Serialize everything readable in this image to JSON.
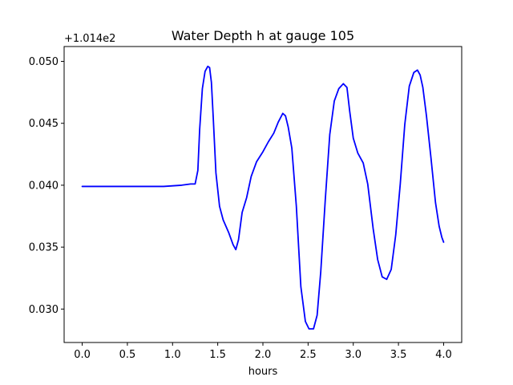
{
  "chart_data": {
    "type": "line",
    "title": "Water Depth h at gauge 105",
    "xlabel": "hours",
    "ylabel": "",
    "offset_text": "+1.014e2",
    "xlim": [
      -0.2,
      4.2
    ],
    "ylim": [
      0.0273,
      0.0512
    ],
    "xticks": [
      0.0,
      0.5,
      1.0,
      1.5,
      2.0,
      2.5,
      3.0,
      3.5,
      4.0
    ],
    "xtick_labels": [
      "0.0",
      "0.5",
      "1.0",
      "1.5",
      "2.0",
      "2.5",
      "3.0",
      "3.5",
      "4.0"
    ],
    "yticks": [
      0.03,
      0.035,
      0.04,
      0.045,
      0.05
    ],
    "ytick_labels": [
      "0.030",
      "0.035",
      "0.040",
      "0.045",
      "0.050"
    ],
    "grid": false,
    "series": [
      {
        "color": "#0000ff",
        "x": [
          0.0,
          0.3,
          0.6,
          0.9,
          1.1,
          1.2,
          1.25,
          1.28,
          1.3,
          1.33,
          1.36,
          1.39,
          1.41,
          1.43,
          1.45,
          1.48,
          1.52,
          1.56,
          1.62,
          1.67,
          1.7,
          1.73,
          1.77,
          1.82,
          1.87,
          1.93,
          2.0,
          2.06,
          2.12,
          2.17,
          2.22,
          2.25,
          2.28,
          2.32,
          2.37,
          2.42,
          2.47,
          2.51,
          2.56,
          2.6,
          2.64,
          2.69,
          2.74,
          2.79,
          2.84,
          2.89,
          2.93,
          2.96,
          3.0,
          3.05,
          3.11,
          3.16,
          3.22,
          3.27,
          3.32,
          3.37,
          3.42,
          3.47,
          3.52,
          3.57,
          3.62,
          3.67,
          3.71,
          3.74,
          3.77,
          3.81,
          3.86,
          3.91,
          3.95,
          3.98,
          4.0
        ],
        "y": [
          0.0399,
          0.0399,
          0.0399,
          0.0399,
          0.04,
          0.0401,
          0.0401,
          0.0412,
          0.0445,
          0.0478,
          0.0492,
          0.0496,
          0.0495,
          0.0483,
          0.0455,
          0.041,
          0.0383,
          0.0372,
          0.0362,
          0.0352,
          0.0348,
          0.0356,
          0.0378,
          0.039,
          0.0407,
          0.0419,
          0.0427,
          0.0435,
          0.0442,
          0.0451,
          0.0458,
          0.0456,
          0.0447,
          0.043,
          0.0383,
          0.0318,
          0.029,
          0.0284,
          0.0284,
          0.0295,
          0.033,
          0.0388,
          0.0441,
          0.0468,
          0.0478,
          0.0482,
          0.0479,
          0.046,
          0.0438,
          0.0426,
          0.0418,
          0.0401,
          0.0365,
          0.034,
          0.0326,
          0.0324,
          0.0332,
          0.036,
          0.0401,
          0.0449,
          0.048,
          0.0491,
          0.0493,
          0.0489,
          0.0479,
          0.0456,
          0.0422,
          0.0386,
          0.0367,
          0.0358,
          0.0354
        ]
      }
    ]
  }
}
